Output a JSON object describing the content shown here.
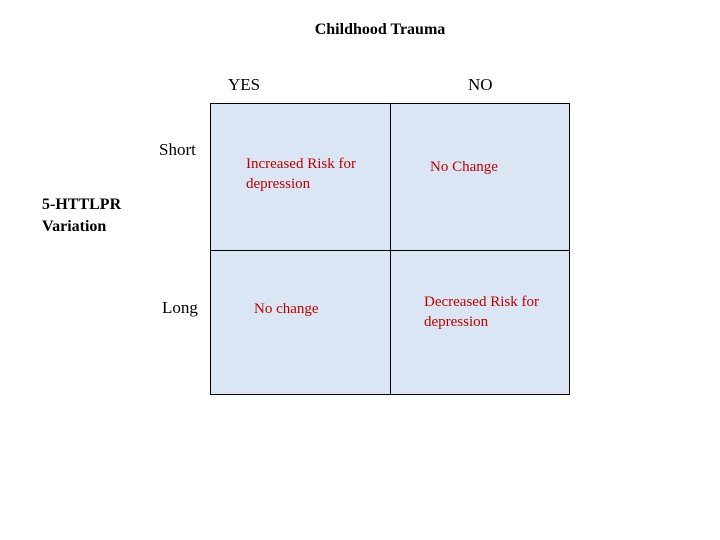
{
  "title": "Childhood Trauma",
  "columns": {
    "yes": "YES",
    "no": "NO"
  },
  "rows": {
    "short": "Short",
    "long": "Long"
  },
  "side_label": {
    "line1": "5-HTTLPR",
    "line2": "Variation"
  },
  "cells": {
    "short_yes": "Increased Risk for depression",
    "short_no": "No Change",
    "long_yes": "No change",
    "long_no": "Decreased Risk for depression"
  },
  "colors": {
    "cell_fill": "#dae6f3",
    "cell_text": "#c00000",
    "border": "#000000",
    "background": "#ffffff"
  }
}
